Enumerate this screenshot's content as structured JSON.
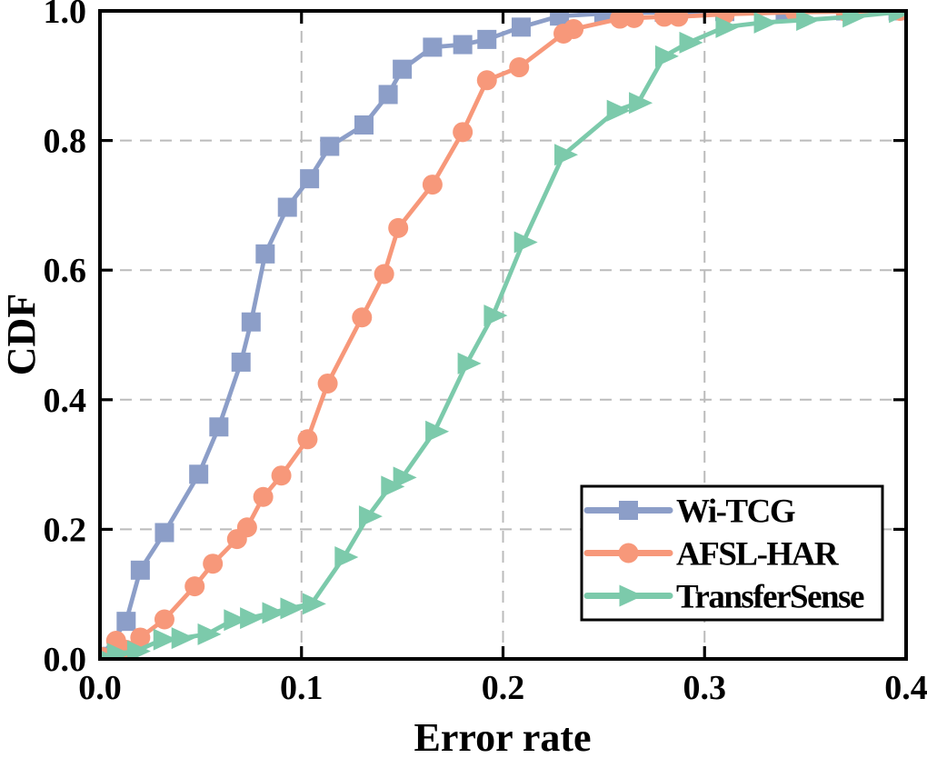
{
  "chart_data": {
    "type": "line",
    "title": "",
    "xlabel": "Error rate",
    "ylabel": "CDF",
    "xlim": [
      0.0,
      0.4
    ],
    "ylim": [
      0.0,
      1.0
    ],
    "xticks": {
      "values": [
        0.0,
        0.1,
        0.2,
        0.3,
        0.4
      ],
      "labels": [
        "0.0",
        "0.1",
        "0.2",
        "0.3",
        "0.4"
      ]
    },
    "yticks": {
      "values": [
        0.0,
        0.2,
        0.4,
        0.6,
        0.8,
        1.0
      ],
      "labels": [
        "0.0",
        "0.2",
        "0.4",
        "0.6",
        "0.8",
        "1.0"
      ]
    },
    "grid": "dashed",
    "grid_color": "#bbbbbb",
    "axis_color": "#000000",
    "legend_position": "lower right",
    "series": [
      {
        "name": "Wi-TCG",
        "color": "#8C9EC8",
        "marker": "square",
        "points": [
          [
            0.001,
            0.004
          ],
          [
            0.013,
            0.058
          ],
          [
            0.02,
            0.137
          ],
          [
            0.032,
            0.195
          ],
          [
            0.049,
            0.285
          ],
          [
            0.059,
            0.358
          ],
          [
            0.07,
            0.458
          ],
          [
            0.075,
            0.52
          ],
          [
            0.082,
            0.625
          ],
          [
            0.093,
            0.697
          ],
          [
            0.104,
            0.741
          ],
          [
            0.114,
            0.791
          ],
          [
            0.131,
            0.824
          ],
          [
            0.143,
            0.871
          ],
          [
            0.15,
            0.91
          ],
          [
            0.165,
            0.944
          ],
          [
            0.18,
            0.948
          ],
          [
            0.192,
            0.956
          ],
          [
            0.209,
            0.975
          ],
          [
            0.228,
            0.992
          ],
          [
            0.25,
            0.996
          ],
          [
            0.28,
            0.998
          ],
          [
            0.31,
            0.999
          ],
          [
            0.34,
            1.0
          ],
          [
            0.37,
            1.0
          ],
          [
            0.396,
            1.0
          ]
        ]
      },
      {
        "name": "AFSL-HAR",
        "color": "#F7987A",
        "marker": "circle",
        "points": [
          [
            0.001,
            0.003
          ],
          [
            0.008,
            0.028
          ],
          [
            0.013,
            0.014
          ],
          [
            0.02,
            0.033
          ],
          [
            0.032,
            0.061
          ],
          [
            0.047,
            0.112
          ],
          [
            0.056,
            0.147
          ],
          [
            0.068,
            0.185
          ],
          [
            0.073,
            0.203
          ],
          [
            0.081,
            0.25
          ],
          [
            0.09,
            0.283
          ],
          [
            0.103,
            0.339
          ],
          [
            0.113,
            0.425
          ],
          [
            0.13,
            0.527
          ],
          [
            0.141,
            0.594
          ],
          [
            0.148,
            0.665
          ],
          [
            0.165,
            0.732
          ],
          [
            0.18,
            0.813
          ],
          [
            0.192,
            0.893
          ],
          [
            0.208,
            0.913
          ],
          [
            0.23,
            0.965
          ],
          [
            0.235,
            0.972
          ],
          [
            0.258,
            0.988
          ],
          [
            0.265,
            0.989
          ],
          [
            0.28,
            0.991
          ],
          [
            0.287,
            0.991
          ],
          [
            0.31,
            0.995
          ],
          [
            0.345,
            0.998
          ],
          [
            0.37,
            0.999
          ],
          [
            0.397,
            1.0
          ]
        ]
      },
      {
        "name": "TransferSense",
        "color": "#7CCAAB",
        "marker": "triangle-right",
        "points": [
          [
            0.001,
            0.002
          ],
          [
            0.008,
            0.008
          ],
          [
            0.018,
            0.012
          ],
          [
            0.031,
            0.03
          ],
          [
            0.04,
            0.032
          ],
          [
            0.053,
            0.038
          ],
          [
            0.066,
            0.06
          ],
          [
            0.074,
            0.063
          ],
          [
            0.085,
            0.071
          ],
          [
            0.094,
            0.078
          ],
          [
            0.105,
            0.085
          ],
          [
            0.121,
            0.157
          ],
          [
            0.133,
            0.22
          ],
          [
            0.144,
            0.266
          ],
          [
            0.15,
            0.28
          ],
          [
            0.166,
            0.351
          ],
          [
            0.182,
            0.456
          ],
          [
            0.195,
            0.53
          ],
          [
            0.21,
            0.643
          ],
          [
            0.23,
            0.778
          ],
          [
            0.256,
            0.846
          ],
          [
            0.267,
            0.858
          ],
          [
            0.28,
            0.93
          ],
          [
            0.292,
            0.951
          ],
          [
            0.31,
            0.975
          ],
          [
            0.329,
            0.982
          ],
          [
            0.35,
            0.986
          ],
          [
            0.373,
            0.991
          ],
          [
            0.396,
            0.998
          ]
        ]
      }
    ]
  }
}
